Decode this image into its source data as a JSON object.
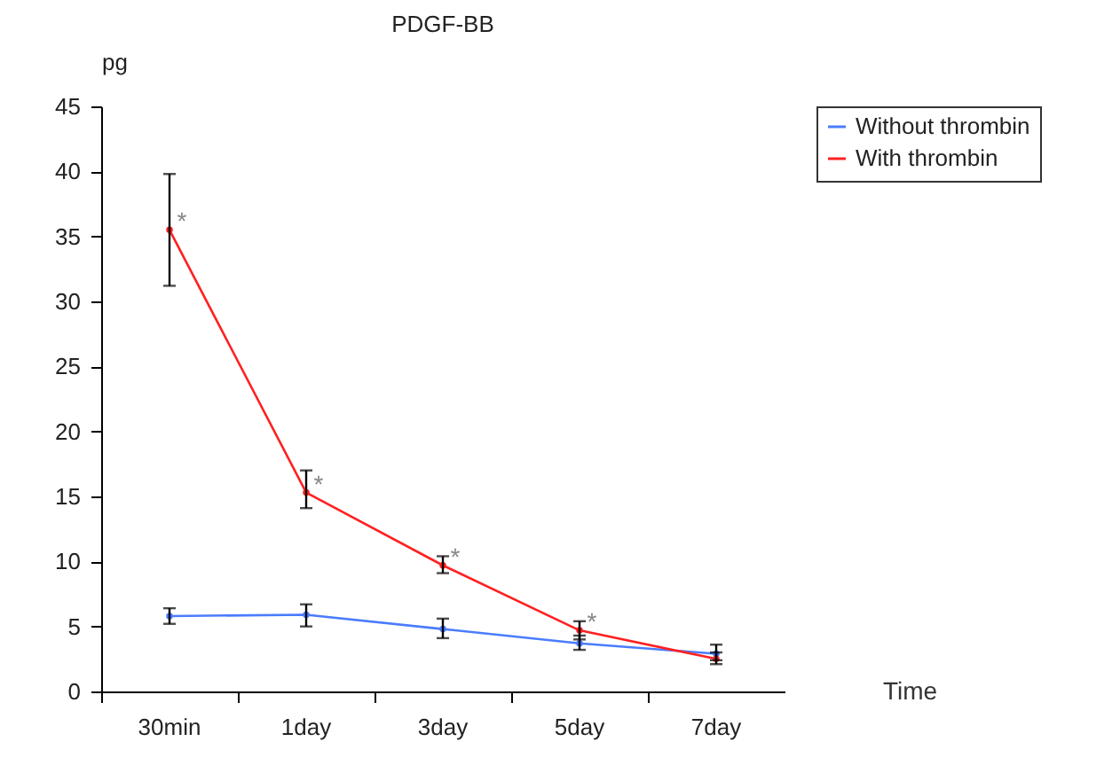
{
  "chart_data": {
    "type": "line",
    "title": "PDGF-BB",
    "ylabel": "pg",
    "xlabel": "Time",
    "categories": [
      "30min",
      "1day",
      "3day",
      "5day",
      "7day"
    ],
    "series": [
      {
        "name": "Without thrombin",
        "color": "#4a7cff",
        "values": [
          5.8,
          5.9,
          4.8,
          3.7,
          2.9
        ],
        "errors": [
          [
            5.2,
            6.4
          ],
          [
            5.0,
            6.7
          ],
          [
            4.1,
            5.6
          ],
          [
            3.2,
            4.3
          ],
          [
            2.4,
            3.6
          ]
        ]
      },
      {
        "name": "With thrombin",
        "color": "#ff2020",
        "values": [
          35.5,
          15.3,
          9.7,
          4.7,
          2.5
        ],
        "errors": [
          [
            31.2,
            39.8
          ],
          [
            14.1,
            17.0
          ],
          [
            9.1,
            10.4
          ],
          [
            4.0,
            5.4
          ],
          [
            2.1,
            3.0
          ]
        ]
      }
    ],
    "annotations": [
      {
        "text": "*",
        "x": "30min",
        "y": 35.5
      },
      {
        "text": "*",
        "x": "1day",
        "y": 15.3
      },
      {
        "text": "*",
        "x": "3day",
        "y": 9.7
      },
      {
        "text": "*",
        "x": "5day",
        "y": 4.7
      }
    ],
    "ylim": [
      0,
      45
    ],
    "yticks": [
      0,
      5,
      10,
      15,
      20,
      25,
      30,
      35,
      40,
      45
    ],
    "grid": false,
    "legend": "right",
    "marker": "circle",
    "line_style": "solid"
  }
}
